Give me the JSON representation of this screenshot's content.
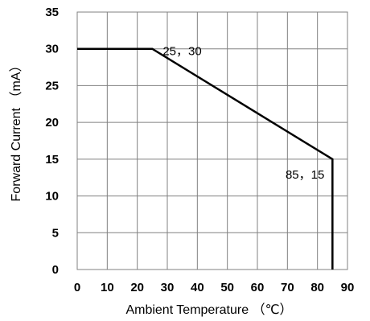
{
  "chart_data": {
    "type": "line",
    "title": "",
    "xlabel": "Ambient Temperature （℃）",
    "ylabel": "Forward Current （mA）",
    "xlim": [
      0,
      90
    ],
    "ylim": [
      0,
      35
    ],
    "x_ticks": [
      0,
      10,
      20,
      30,
      40,
      50,
      60,
      70,
      80,
      90
    ],
    "y_ticks": [
      0,
      5,
      10,
      15,
      20,
      25,
      30,
      35
    ],
    "grid": true,
    "legend": "none",
    "line_color": "#000000",
    "grid_color": "#808080",
    "series": [
      {
        "x": [
          0,
          25,
          85,
          85
        ],
        "y": [
          30,
          30,
          15,
          0
        ]
      }
    ],
    "annotations": [
      {
        "text": "25，30",
        "x": 25,
        "y": 30
      },
      {
        "text": "85，15",
        "x": 85,
        "y": 15
      }
    ]
  }
}
